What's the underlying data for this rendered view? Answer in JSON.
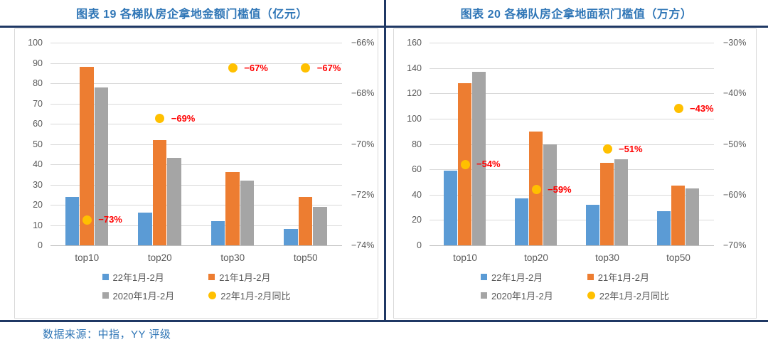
{
  "page": {
    "footer_source": "数据来源：中指，YY 评级"
  },
  "colors": {
    "series_blue": "#5B9BD5",
    "series_orange": "#ED7D31",
    "series_gray": "#A5A5A5",
    "series_yellow": "#FFC000",
    "sync_label_red": "#FF0000",
    "title_blue": "#2E75B6",
    "rule_navy": "#1F3864",
    "axis_text_gray": "#595959",
    "gridline_gray": "#D9D9D9"
  },
  "chart_data": [
    {
      "type": "bar",
      "title": "图表  19 各梯队房企拿地金额门槛值（亿元）",
      "categories": [
        "top10",
        "top20",
        "top30",
        "top50"
      ],
      "grid": true,
      "legend_position": "bottom",
      "left_axis": {
        "min": 0,
        "max": 100,
        "step": 10,
        "ticks": [
          "100",
          "90",
          "80",
          "70",
          "60",
          "50",
          "40",
          "30",
          "20",
          "10",
          "0"
        ]
      },
      "right_axis": {
        "min": -74,
        "max": -66,
        "step": 2,
        "ticks": [
          "−66%",
          "−68%",
          "−70%",
          "−72%",
          "−74%"
        ]
      },
      "series": [
        {
          "name": "22年1月-2月",
          "type": "bar",
          "axis": "left",
          "color": "#5B9BD5",
          "values": [
            24,
            16,
            12,
            8
          ]
        },
        {
          "name": "21年1月-2月",
          "type": "bar",
          "axis": "left",
          "color": "#ED7D31",
          "values": [
            88,
            52,
            36,
            24
          ]
        },
        {
          "name": "2020年1月-2月",
          "type": "bar",
          "axis": "left",
          "color": "#A5A5A5",
          "values": [
            78,
            43,
            32,
            19
          ]
        },
        {
          "name": "22年1月-2月同比",
          "type": "point",
          "axis": "right",
          "color": "#FFC000",
          "values": [
            -73,
            -69,
            -67,
            -67
          ],
          "labels": [
            "−73%",
            "−69%",
            "−67%",
            "−67%"
          ],
          "label_color": "#FF0000"
        }
      ]
    },
    {
      "type": "bar",
      "title": "图表  20 各梯队房企拿地面积门槛值（万方）",
      "categories": [
        "top10",
        "top20",
        "top30",
        "top50"
      ],
      "grid": true,
      "legend_position": "bottom",
      "left_axis": {
        "min": 0,
        "max": 160,
        "step": 20,
        "ticks": [
          "160",
          "140",
          "120",
          "100",
          "80",
          "60",
          "40",
          "20",
          "0"
        ]
      },
      "right_axis": {
        "min": -70,
        "max": -30,
        "step": 10,
        "ticks": [
          "−30%",
          "−40%",
          "−50%",
          "−60%",
          "−70%"
        ]
      },
      "series": [
        {
          "name": "22年1月-2月",
          "type": "bar",
          "axis": "left",
          "color": "#5B9BD5",
          "values": [
            59,
            37,
            32,
            27
          ]
        },
        {
          "name": "21年1月-2月",
          "type": "bar",
          "axis": "left",
          "color": "#ED7D31",
          "values": [
            128,
            90,
            65,
            47
          ]
        },
        {
          "name": "2020年1月-2月",
          "type": "bar",
          "axis": "left",
          "color": "#A5A5A5",
          "values": [
            137,
            80,
            68,
            45
          ]
        },
        {
          "name": "22年1月-2月同比",
          "type": "point",
          "axis": "right",
          "color": "#FFC000",
          "values": [
            -54,
            -59,
            -51,
            -43
          ],
          "labels": [
            "−54%",
            "−59%",
            "−51%",
            "−43%"
          ],
          "label_color": "#FF0000"
        }
      ]
    }
  ]
}
